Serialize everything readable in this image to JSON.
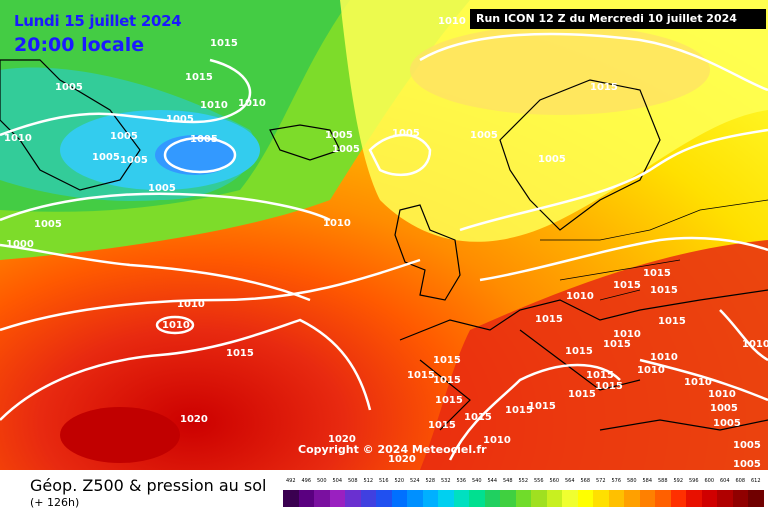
{
  "header": {
    "valid_date": "Lundi 15 juillet 2024",
    "valid_time": "20:00 locale",
    "run_label": "Run ICON 12 Z du Mercredi 10 juillet 2024"
  },
  "footer": {
    "copyright": "Copyright © 2024 Meteociel.fr"
  },
  "legend": {
    "title": "Géop. Z500 & pression au sol",
    "subtitle": "(+ 126h)",
    "scale_values": [
      "492",
      "496",
      "500",
      "504",
      "508",
      "512",
      "516",
      "520",
      "524",
      "528",
      "532",
      "536",
      "540",
      "544",
      "548",
      "552",
      "556",
      "560",
      "564",
      "568",
      "572",
      "576",
      "580",
      "584",
      "588",
      "592",
      "596",
      "600",
      "604",
      "608",
      "612"
    ],
    "scale_colors": [
      "#3a0050",
      "#5a0080",
      "#7a10a0",
      "#9a20c0",
      "#6a30d0",
      "#4040e0",
      "#2050f0",
      "#0070ff",
      "#0090ff",
      "#00b0ff",
      "#00d0f0",
      "#00e0c0",
      "#00e090",
      "#20d060",
      "#40d040",
      "#70dc2a",
      "#a0e020",
      "#c8f020",
      "#f0ff30",
      "#ffff00",
      "#ffe000",
      "#ffc000",
      "#ffa000",
      "#ff8000",
      "#ff6000",
      "#ff3000",
      "#e81000",
      "#d00000",
      "#b00000",
      "#900000",
      "#700000"
    ]
  },
  "isobar_labels": [
    "1010",
    "1015",
    "1015",
    "1005",
    "1010",
    "1010",
    "1015",
    "1005",
    "1010",
    "1005",
    "1005",
    "1005",
    "1005",
    "1005",
    "1005",
    "1005",
    "1005",
    "1005",
    "1005",
    "1005",
    "1010",
    "1000",
    "1015",
    "1015",
    "1015",
    "1010",
    "1010",
    "1015",
    "1010",
    "1015",
    "1010",
    "1010",
    "1015",
    "1015",
    "1015",
    "1010",
    "1015",
    "1010",
    "1015",
    "1015",
    "1015",
    "1015",
    "1010",
    "1015",
    "1010",
    "1015",
    "1005",
    "1015",
    "1015",
    "1020",
    "1015",
    "1015",
    "1005",
    "1020",
    "1010",
    "1005",
    "1020",
    "1005"
  ]
}
